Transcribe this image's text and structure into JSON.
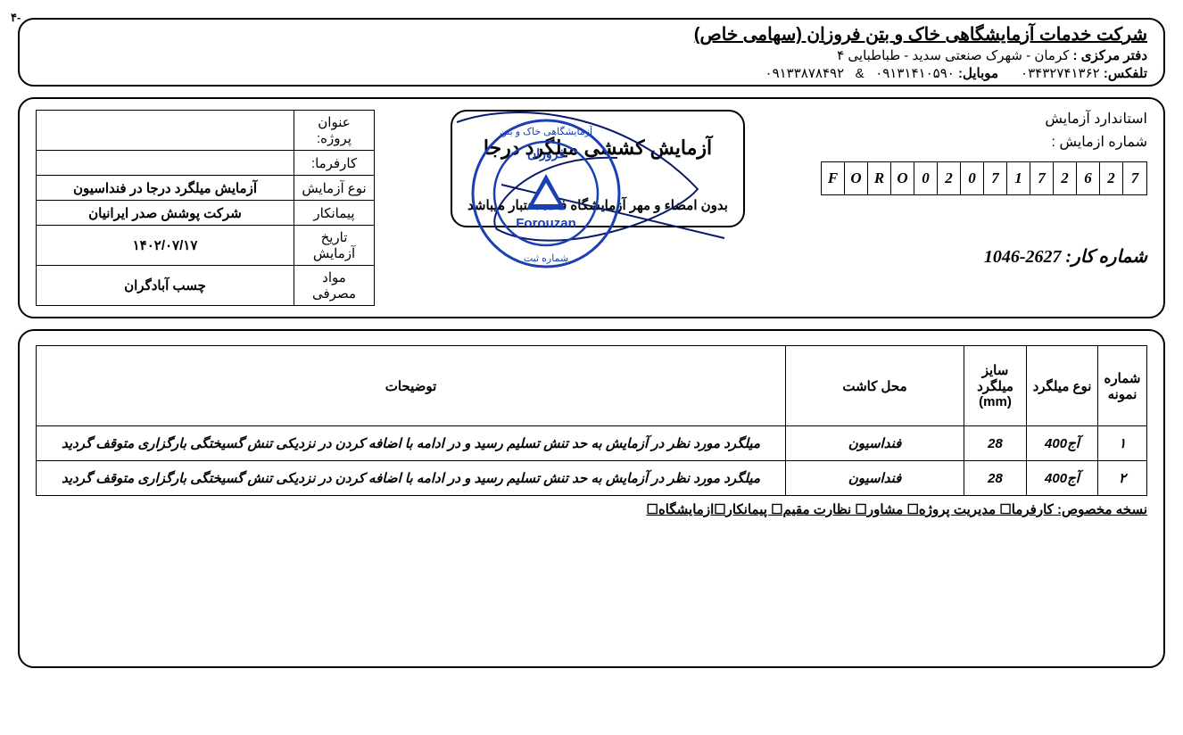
{
  "page_number": "۴-",
  "header": {
    "company": "شرکت خدمات آزمایشگاهی خاک و بتن فروزان (سهامی خاص)",
    "office_label": "دفتر مرکزی :",
    "office_value": "کرمان - شهرک صنعتی سدید - طباطبایی ۴",
    "telfax_label": "تلفکس:",
    "telfax_value": "۰۳۴۳۲۷۴۱۳۶۲",
    "mobile_label": "موبایل:",
    "mobile1": "۰۹۱۳۱۴۱۰۵۹۰",
    "and": "&",
    "mobile2": "۰۹۱۳۳۸۷۸۴۹۲"
  },
  "info": {
    "standard_label": "استاندارد آزمایش",
    "testno_label": "شماره ازمایش :",
    "code_chars": [
      "F",
      "O",
      "R",
      "O",
      "0",
      "2",
      "0",
      "7",
      "1",
      "7",
      "2",
      "6",
      "2",
      "7"
    ],
    "job_label": "شماره کار:",
    "job_number": "1046-2627",
    "test_title": "آزمایش کششی میلگرد درجا",
    "disclaimer": "بدون امضاء و مهر آزمایشگاه فاقد اعتبار میباشد",
    "meta": {
      "project_label": "عنوان پروژه:",
      "project_value": "",
      "client_label": "کارفرما:",
      "client_value": "",
      "testtype_label": "نوع آزمایش",
      "testtype_value": "آزمایش میلگرد درجا در فنداسیون",
      "contractor_label": "پیمانکار",
      "contractor_value": "شرکت پوشش صدر ایرانیان",
      "date_label": "تاریخ آزمایش",
      "date_value": "۱۴۰۲/۰۷/۱۷",
      "material_label": "مواد مصرفی",
      "material_value": "چسب آبادگران"
    }
  },
  "table": {
    "headers": {
      "num": "شماره نمونه",
      "rebar_type": "نوع میلگرد",
      "size": "سایز میلگرد (mm)",
      "location": "محل کاشت",
      "desc": "توضیحات"
    },
    "rows": [
      {
        "num": "۱",
        "type": "آج400",
        "size": "28",
        "loc": "فنداسیون",
        "desc": "میلگرد مورد نظر در آزمایش به حد تنش تسلیم رسید و در ادامه با اضافه کردن در نزدیکی تنش گسیختگی بارگزاری متوقف گردید"
      },
      {
        "num": "۲",
        "type": "آج400",
        "size": "28",
        "loc": "فنداسیون",
        "desc": "میلگرد مورد نظر در آزمایش به حد تنش تسلیم رسید و در ادامه با اضافه کردن در نزدیکی تنش گسیختگی بارگزاری متوقف گردید"
      }
    ]
  },
  "distribution": "نسخه مخصوص: کارفرما☐ مدیریت پروژه☐ مشاور☐ نظارت مقیم☐ پیمانکار☐ازمایشگاه☐",
  "stamp": {
    "outer_text_top": "آزمایشگاهی خاک و بتن",
    "brand": "Forouzan",
    "brand_fa": "فروزان",
    "reg": "شماره ثبت",
    "color": "#1a3fb3"
  }
}
